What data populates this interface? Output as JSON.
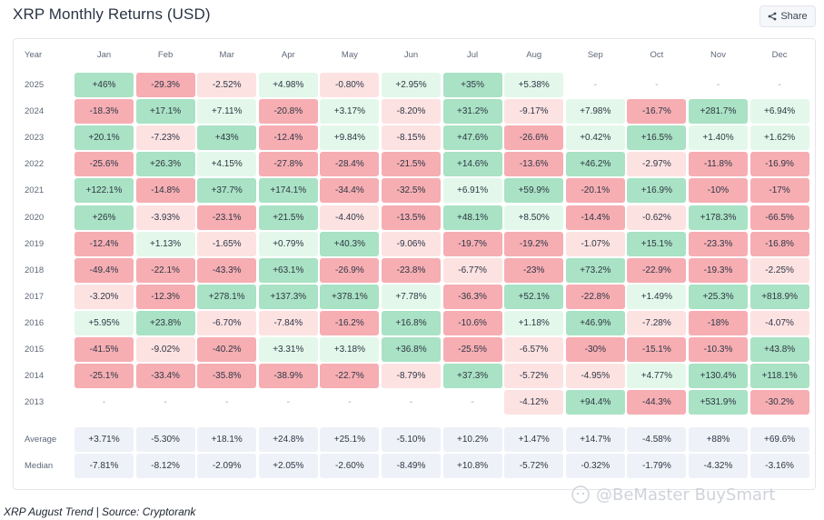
{
  "header": {
    "title": "XRP Monthly Returns (USD)",
    "share_label": "Share"
  },
  "colors": {
    "strong_green": "#a9e2c4",
    "light_green": "#e3f8ea",
    "strong_red": "#f6aeb3",
    "light_red": "#fde2e2",
    "summary": "#eef1f7"
  },
  "chart_data": {
    "type": "table",
    "title": "XRP Monthly Returns (USD)",
    "corner_label": "Year",
    "columns": [
      "Jan",
      "Feb",
      "Mar",
      "Apr",
      "May",
      "Jun",
      "Jul",
      "Aug",
      "Sep",
      "Oct",
      "Nov",
      "Dec"
    ],
    "rows": [
      {
        "year": "2025",
        "values": [
          "+46%",
          "-29.3%",
          "-2.52%",
          "+4.98%",
          "-0.80%",
          "+2.95%",
          "+35%",
          "+5.38%",
          "-",
          "-",
          "-",
          "-"
        ]
      },
      {
        "year": "2024",
        "values": [
          "-18.3%",
          "+17.1%",
          "+7.11%",
          "-20.8%",
          "+3.17%",
          "-8.20%",
          "+31.2%",
          "-9.17%",
          "+7.98%",
          "-16.7%",
          "+281.7%",
          "+6.94%"
        ]
      },
      {
        "year": "2023",
        "values": [
          "+20.1%",
          "-7.23%",
          "+43%",
          "-12.4%",
          "+9.84%",
          "-8.15%",
          "+47.6%",
          "-26.6%",
          "+0.42%",
          "+16.5%",
          "+1.40%",
          "+1.62%"
        ]
      },
      {
        "year": "2022",
        "values": [
          "-25.6%",
          "+26.3%",
          "+4.15%",
          "-27.8%",
          "-28.4%",
          "-21.5%",
          "+14.6%",
          "-13.6%",
          "+46.2%",
          "-2.97%",
          "-11.8%",
          "-16.9%"
        ]
      },
      {
        "year": "2021",
        "values": [
          "+122.1%",
          "-14.8%",
          "+37.7%",
          "+174.1%",
          "-34.4%",
          "-32.5%",
          "+6.91%",
          "+59.9%",
          "-20.1%",
          "+16.9%",
          "-10%",
          "-17%"
        ]
      },
      {
        "year": "2020",
        "values": [
          "+26%",
          "-3.93%",
          "-23.1%",
          "+21.5%",
          "-4.40%",
          "-13.5%",
          "+48.1%",
          "+8.50%",
          "-14.4%",
          "-0.62%",
          "+178.3%",
          "-66.5%"
        ]
      },
      {
        "year": "2019",
        "values": [
          "-12.4%",
          "+1.13%",
          "-1.65%",
          "+0.79%",
          "+40.3%",
          "-9.06%",
          "-19.7%",
          "-19.2%",
          "-1.07%",
          "+15.1%",
          "-23.3%",
          "-16.8%"
        ]
      },
      {
        "year": "2018",
        "values": [
          "-49.4%",
          "-22.1%",
          "-43.3%",
          "+63.1%",
          "-26.9%",
          "-23.8%",
          "-6.77%",
          "-23%",
          "+73.2%",
          "-22.9%",
          "-19.3%",
          "-2.25%"
        ]
      },
      {
        "year": "2017",
        "values": [
          "-3.20%",
          "-12.3%",
          "+278.1%",
          "+137.3%",
          "+378.1%",
          "+7.78%",
          "-36.3%",
          "+52.1%",
          "-22.8%",
          "+1.49%",
          "+25.3%",
          "+818.9%"
        ]
      },
      {
        "year": "2016",
        "values": [
          "+5.95%",
          "+23.8%",
          "-6.70%",
          "-7.84%",
          "-16.2%",
          "+16.8%",
          "-10.6%",
          "+1.18%",
          "+46.9%",
          "-7.28%",
          "-18%",
          "-4.07%"
        ]
      },
      {
        "year": "2015",
        "values": [
          "-41.5%",
          "-9.02%",
          "-40.2%",
          "+3.31%",
          "+3.18%",
          "+36.8%",
          "-25.5%",
          "-6.57%",
          "-30%",
          "-15.1%",
          "-10.3%",
          "+43.8%"
        ]
      },
      {
        "year": "2014",
        "values": [
          "-25.1%",
          "-33.4%",
          "-35.8%",
          "-38.9%",
          "-22.7%",
          "-8.79%",
          "+37.3%",
          "-5.72%",
          "-4.95%",
          "+4.77%",
          "+130.4%",
          "+118.1%"
        ]
      },
      {
        "year": "2013",
        "values": [
          "-",
          "-",
          "-",
          "-",
          "-",
          "-",
          "-",
          "-4.12%",
          "+94.4%",
          "-44.3%",
          "+531.9%",
          "-30.2%"
        ]
      }
    ],
    "summary": [
      {
        "label": "Average",
        "values": [
          "+3.71%",
          "-5.30%",
          "+18.1%",
          "+24.8%",
          "+25.1%",
          "-5.10%",
          "+10.2%",
          "+1.47%",
          "+14.7%",
          "-4.58%",
          "+88%",
          "+69.6%"
        ]
      },
      {
        "label": "Median",
        "values": [
          "-7.81%",
          "-8.12%",
          "-2.09%",
          "+2.05%",
          "-2.60%",
          "-8.49%",
          "+10.8%",
          "-5.72%",
          "-0.32%",
          "-1.79%",
          "-4.32%",
          "-3.16%"
        ]
      }
    ]
  },
  "footer": {
    "caption": "XRP August Trend | Source: Cryptorank"
  },
  "watermark": {
    "text": "@BeMaster BuySmart"
  }
}
